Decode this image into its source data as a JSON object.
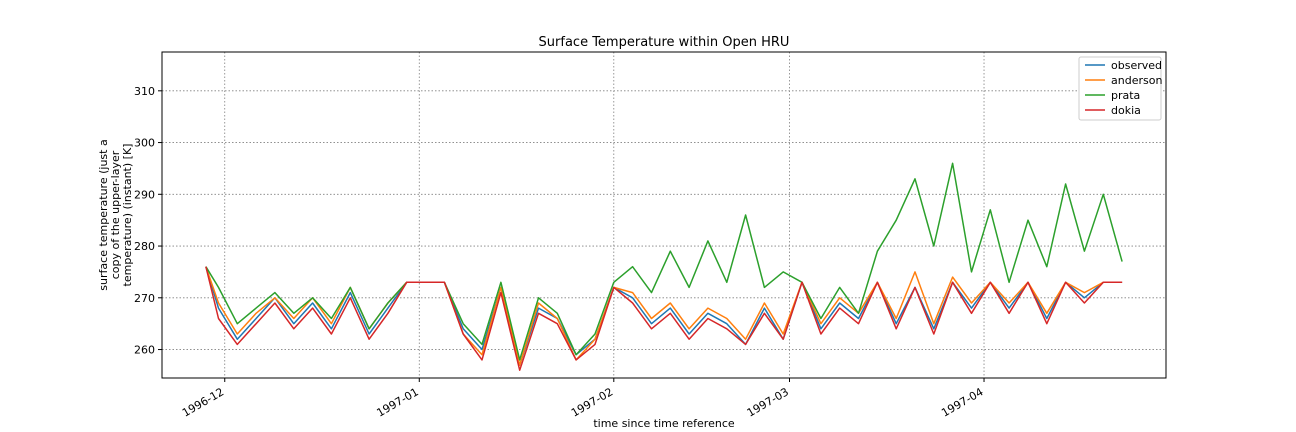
{
  "chart_data": {
    "type": "line",
    "title": "Surface Temperature within Open HRU",
    "xlabel": "time since time reference",
    "ylabel_lines": [
      "surface temperature (just a",
      "copy of the upper-layer",
      "temperature) (instant) [K]"
    ],
    "x_tick_labels": [
      "1996-12",
      "1997-01",
      "1997-02",
      "1997-03",
      "1997-04"
    ],
    "x_ticks": [
      "1996-12-01",
      "1997-01-01",
      "1997-02-01",
      "1997-03-01",
      "1997-04-01"
    ],
    "xlim": [
      "1996-11-21",
      "1997-04-30"
    ],
    "ylim": [
      254.5,
      317.5
    ],
    "y_ticks": [
      260,
      270,
      280,
      290,
      300,
      310
    ],
    "grid": true,
    "legend_position": "top-right",
    "x": [
      "1996-11-28",
      "1996-11-30",
      "1996-12-03",
      "1996-12-06",
      "1996-12-09",
      "1996-12-12",
      "1996-12-15",
      "1996-12-18",
      "1996-12-21",
      "1996-12-24",
      "1996-12-27",
      "1996-12-30",
      "1997-01-02",
      "1997-01-05",
      "1997-01-08",
      "1997-01-11",
      "1997-01-14",
      "1997-01-17",
      "1997-01-20",
      "1997-01-23",
      "1997-01-26",
      "1997-01-29",
      "1997-02-01",
      "1997-02-04",
      "1997-02-07",
      "1997-02-10",
      "1997-02-13",
      "1997-02-16",
      "1997-02-19",
      "1997-02-22",
      "1997-02-25",
      "1997-02-28",
      "1997-03-03",
      "1997-03-06",
      "1997-03-09",
      "1997-03-12",
      "1997-03-15",
      "1997-03-18",
      "1997-03-21",
      "1997-03-24",
      "1997-03-27",
      "1997-03-30",
      "1997-04-02",
      "1997-04-05",
      "1997-04-08",
      "1997-04-11",
      "1997-04-14",
      "1997-04-17",
      "1997-04-20",
      "1997-04-23"
    ],
    "series": [
      {
        "name": "observed",
        "color": "#1f77b4",
        "values": [
          276,
          268,
          262,
          266,
          270,
          265,
          269,
          264,
          271,
          263,
          268,
          273,
          273,
          273,
          264,
          260,
          272,
          257,
          268,
          266,
          259,
          262,
          272,
          270,
          265,
          268,
          263,
          267,
          265,
          261,
          268,
          262,
          273,
          264,
          269,
          266,
          273,
          265,
          272,
          264,
          273,
          268,
          273,
          268,
          273,
          266,
          273,
          270,
          273,
          273
        ]
      },
      {
        "name": "anderson",
        "color": "#ff7f0e",
        "values": [
          276,
          269,
          263,
          267,
          270,
          266,
          270,
          265,
          272,
          264,
          269,
          273,
          273,
          273,
          263,
          259,
          272,
          257,
          269,
          266,
          258,
          262,
          272,
          271,
          266,
          269,
          264,
          268,
          266,
          262,
          269,
          263,
          273,
          265,
          270,
          267,
          273,
          266,
          275,
          265,
          274,
          269,
          273,
          269,
          273,
          267,
          273,
          271,
          273,
          273
        ]
      },
      {
        "name": "prata",
        "color": "#2ca02c",
        "values": [
          276,
          272,
          265,
          268,
          271,
          267,
          270,
          266,
          272,
          264,
          269,
          273,
          273,
          273,
          265,
          261,
          273,
          258,
          270,
          267,
          259,
          263,
          273,
          276,
          271,
          279,
          272,
          281,
          273,
          286,
          272,
          275,
          273,
          266,
          272,
          267,
          279,
          285,
          293,
          280,
          296,
          275,
          287,
          273,
          285,
          276,
          292,
          279,
          290,
          277
        ]
      },
      {
        "name": "dokia",
        "color": "#d62728",
        "values": [
          276,
          266,
          261,
          265,
          269,
          264,
          268,
          263,
          270,
          262,
          267,
          273,
          273,
          273,
          263,
          258,
          271,
          256,
          267,
          265,
          258,
          261,
          272,
          269,
          264,
          267,
          262,
          266,
          264,
          261,
          267,
          262,
          273,
          263,
          268,
          265,
          273,
          264,
          272,
          263,
          273,
          267,
          273,
          267,
          273,
          265,
          273,
          269,
          273,
          273
        ]
      }
    ]
  }
}
